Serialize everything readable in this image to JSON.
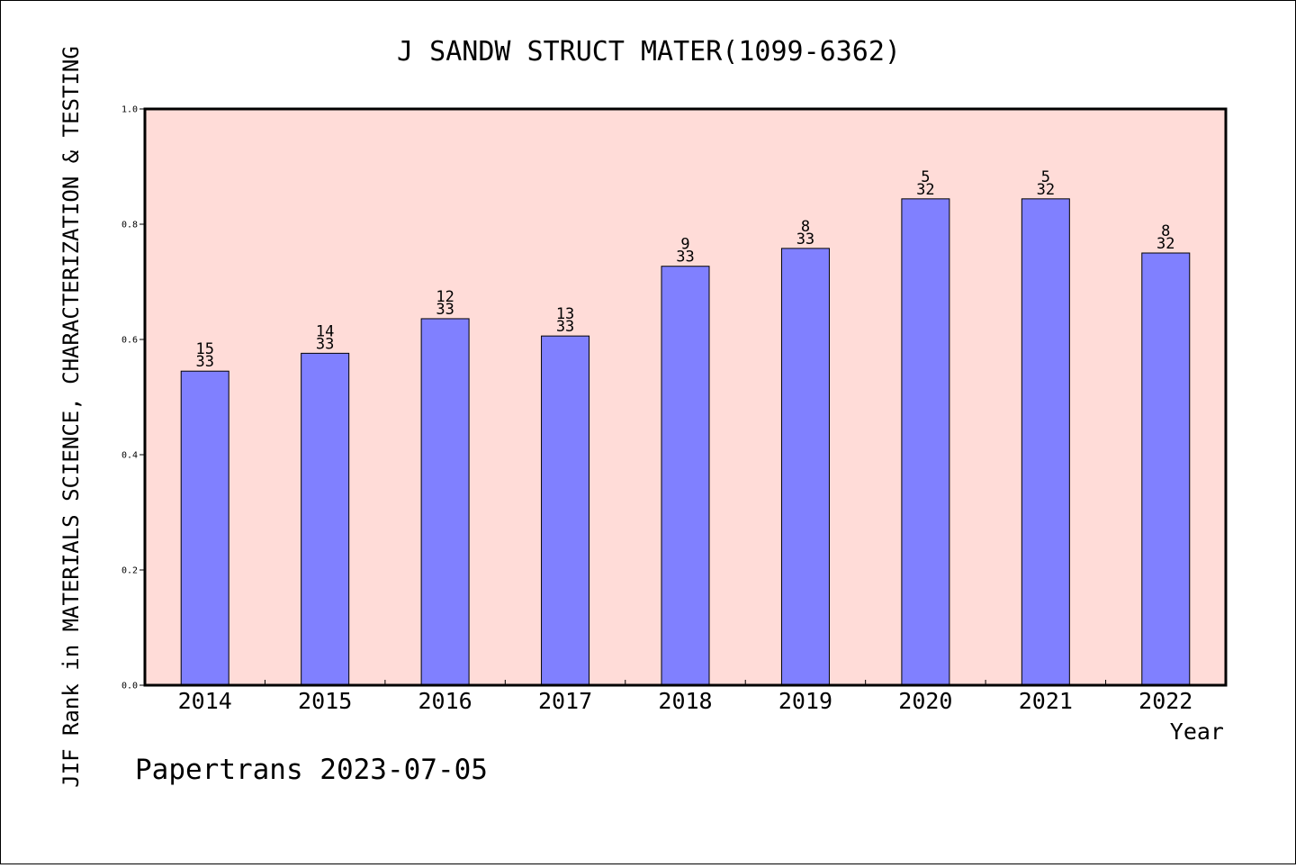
{
  "colors": {
    "plot_background": "#ffdcd8",
    "bar_fill": "#8080ff",
    "bar_stroke": "#000000",
    "text": "#000000"
  },
  "chart_data": {
    "type": "bar",
    "title": "J SANDW STRUCT MATER(1099-6362)",
    "xlabel": "Year",
    "ylabel": "JIF Rank in MATERIALS SCIENCE, CHARACTERIZATION & TESTING",
    "footer": "Papertrans 2023-07-05",
    "ylim": [
      0,
      1.0
    ],
    "yticks": [
      "0.0",
      "0.2",
      "0.4",
      "0.6",
      "0.8",
      "1.0"
    ],
    "grid": false,
    "categories": [
      "2014",
      "2015",
      "2016",
      "2017",
      "2018",
      "2019",
      "2020",
      "2021",
      "2022"
    ],
    "values": [
      0.545,
      0.576,
      0.636,
      0.606,
      0.727,
      0.758,
      0.844,
      0.844,
      0.75
    ],
    "rank_labels": [
      {
        "rank": "15",
        "total": "33"
      },
      {
        "rank": "14",
        "total": "33"
      },
      {
        "rank": "12",
        "total": "33"
      },
      {
        "rank": "13",
        "total": "33"
      },
      {
        "rank": "9",
        "total": "33"
      },
      {
        "rank": "8",
        "total": "33"
      },
      {
        "rank": "5",
        "total": "32"
      },
      {
        "rank": "5",
        "total": "32"
      },
      {
        "rank": "8",
        "total": "32"
      }
    ]
  }
}
